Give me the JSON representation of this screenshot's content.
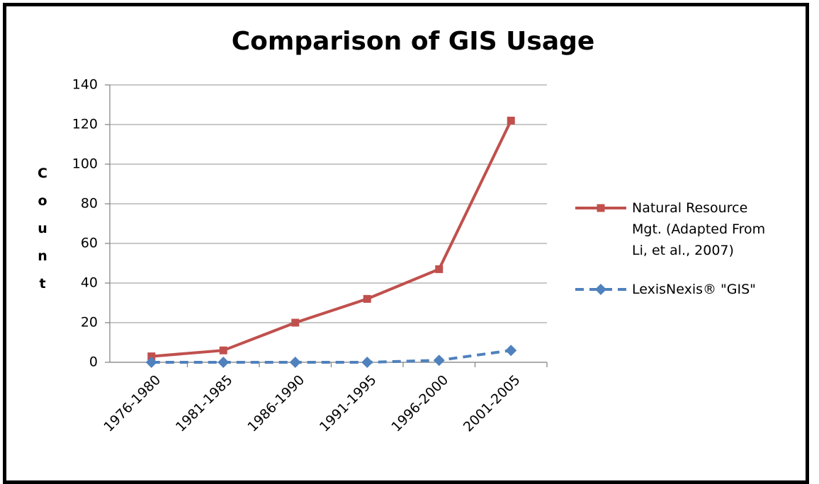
{
  "chart_data": {
    "type": "line",
    "title": "Comparison of GIS Usage",
    "y_label": "Count",
    "categories": [
      "1976-1980",
      "1981-1985",
      "1986-1990",
      "1991-1995",
      "1996-2000",
      "2001-2005"
    ],
    "series": [
      {
        "name": "Natural Resource Mgt. (Adapted From Li, et al., 2007)",
        "color": "#c0504d",
        "marker": "square",
        "dash": "solid",
        "values": [
          3,
          6,
          20,
          32,
          47,
          122
        ]
      },
      {
        "name": "LexisNexis® \"GIS\"",
        "color": "#4f81bd",
        "marker": "diamond",
        "dash": "dashed",
        "values": [
          0,
          0,
          0,
          0,
          1,
          6
        ]
      }
    ],
    "ylim": [
      0,
      140
    ],
    "yticks": [
      0,
      20,
      40,
      60,
      80,
      100,
      120,
      140
    ],
    "grid": true,
    "legend": "right"
  }
}
